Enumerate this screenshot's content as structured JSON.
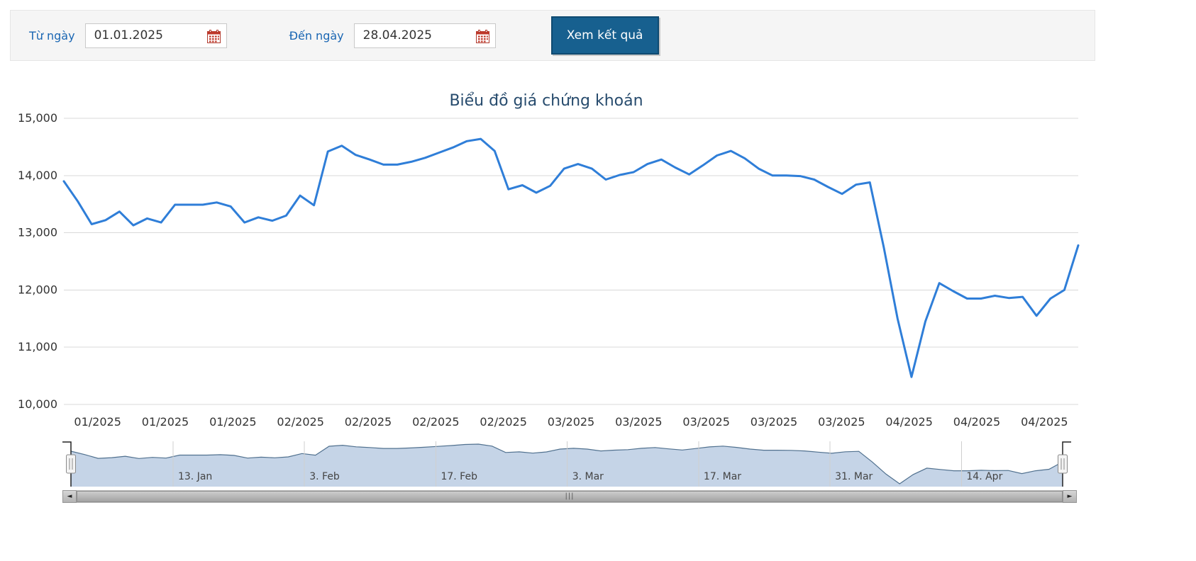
{
  "toolbar": {
    "from_label": "Từ ngày",
    "from_value": "01.01.2025",
    "to_label": "Đến ngày",
    "to_value": "28.04.2025",
    "submit_label": "Xem kết quả"
  },
  "chart_data": {
    "type": "line",
    "title": "Biểu đồ giá chứng khoán",
    "xlabel": "",
    "ylabel": "",
    "ylim": [
      10000,
      15000
    ],
    "y_ticks": [
      15000,
      14000,
      13000,
      12000,
      11000,
      10000
    ],
    "y_tick_labels": [
      "15,000",
      "14,000",
      "13,000",
      "12,000",
      "11,000",
      "10,000"
    ],
    "x_tick_labels": [
      "01/2025",
      "01/2025",
      "01/2025",
      "02/2025",
      "02/2025",
      "02/2025",
      "02/2025",
      "03/2025",
      "03/2025",
      "03/2025",
      "03/2025",
      "03/2025",
      "04/2025",
      "04/2025",
      "04/2025"
    ],
    "grid": true,
    "legend": false,
    "line_color": "#2f7ed8",
    "values": [
      13900,
      13550,
      13150,
      13220,
      13370,
      13130,
      13250,
      13180,
      13490,
      13490,
      13490,
      13530,
      13460,
      13180,
      13270,
      13210,
      13300,
      13650,
      13480,
      14420,
      14520,
      14360,
      14280,
      14190,
      14190,
      14240,
      14310,
      14400,
      14490,
      14600,
      14640,
      14430,
      13760,
      13830,
      13700,
      13820,
      14120,
      14200,
      14120,
      13930,
      14010,
      14060,
      14200,
      14280,
      14140,
      14020,
      14180,
      14350,
      14430,
      14300,
      14120,
      14000,
      14000,
      13990,
      13930,
      13800,
      13680,
      13840,
      13880,
      12750,
      11500,
      10480,
      11450,
      12120,
      11980,
      11850,
      11850,
      11900,
      11860,
      11880,
      11550,
      11850,
      12000,
      12780
    ]
  },
  "navigator": {
    "labels": [
      "13. Jan",
      "3. Feb",
      "17. Feb",
      "3. Mar",
      "17. Mar",
      "31. Mar",
      "14. Apr"
    ]
  },
  "scrollbar": {
    "left_icon": "◄",
    "right_icon": "►",
    "grip": "|||"
  },
  "colors": {
    "accent_blue": "#1a66b3",
    "button_bg": "#17608f",
    "button_border": "#0f4a70",
    "title_color": "#274b6d",
    "navigator_fill": "#c5d4e7",
    "navigator_line": "#51718f"
  }
}
